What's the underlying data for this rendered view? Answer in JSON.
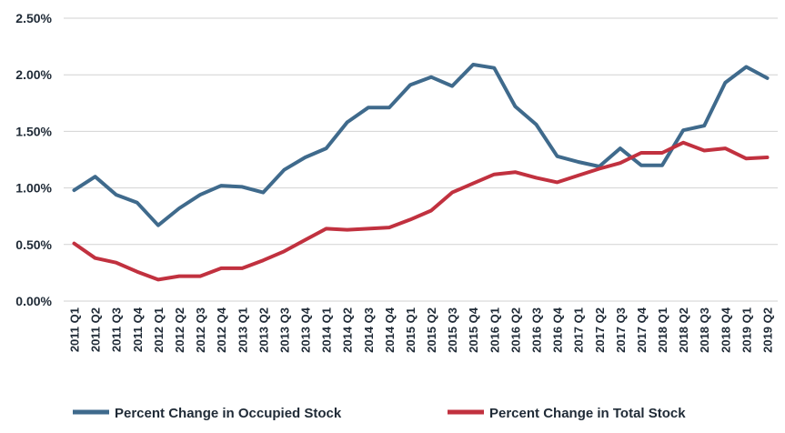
{
  "chart_data": {
    "type": "line",
    "categories": [
      "2011 Q1",
      "2011 Q2",
      "2011 Q3",
      "2011 Q4",
      "2012 Q1",
      "2012 Q2",
      "2012 Q3",
      "2012 Q4",
      "2013 Q1",
      "2013 Q2",
      "2013 Q3",
      "2013 Q4",
      "2014 Q1",
      "2014 Q2",
      "2014 Q3",
      "2014 Q4",
      "2015 Q1",
      "2015 Q2",
      "2015 Q3",
      "2015 Q4",
      "2016 Q1",
      "2016 Q2",
      "2016 Q3",
      "2016 Q4",
      "2017 Q1",
      "2017 Q2",
      "2017 Q3",
      "2017 Q4",
      "2018 Q1",
      "2018 Q2",
      "2018 Q3",
      "2018 Q4",
      "2019 Q1",
      "2019 Q2"
    ],
    "series": [
      {
        "name": "Percent Change in Occupied Stock",
        "color": "#3f6a8c",
        "values": [
          0.98,
          1.1,
          0.94,
          0.87,
          0.67,
          0.82,
          0.94,
          1.02,
          1.01,
          0.96,
          1.16,
          1.27,
          1.35,
          1.58,
          1.71,
          1.71,
          1.91,
          1.98,
          1.9,
          2.09,
          2.06,
          1.72,
          1.56,
          1.28,
          1.23,
          1.19,
          1.35,
          1.2,
          1.2,
          1.51,
          1.55,
          1.93,
          2.07,
          1.97
        ]
      },
      {
        "name": "Percent Change in Total Stock",
        "color": "#c1313f",
        "values": [
          0.51,
          0.38,
          0.34,
          0.26,
          0.19,
          0.22,
          0.22,
          0.29,
          0.29,
          0.36,
          0.44,
          0.54,
          0.64,
          0.63,
          0.64,
          0.65,
          0.72,
          0.8,
          0.96,
          1.04,
          1.12,
          1.14,
          1.09,
          1.05,
          1.11,
          1.17,
          1.22,
          1.31,
          1.31,
          1.4,
          1.33,
          1.35,
          1.26,
          1.27
        ]
      }
    ],
    "ylim": [
      0,
      2.5
    ],
    "yticks": [
      "0.00%",
      "0.50%",
      "1.00%",
      "1.50%",
      "2.00%",
      "2.50%"
    ],
    "grid": true,
    "legend_position": "bottom"
  }
}
